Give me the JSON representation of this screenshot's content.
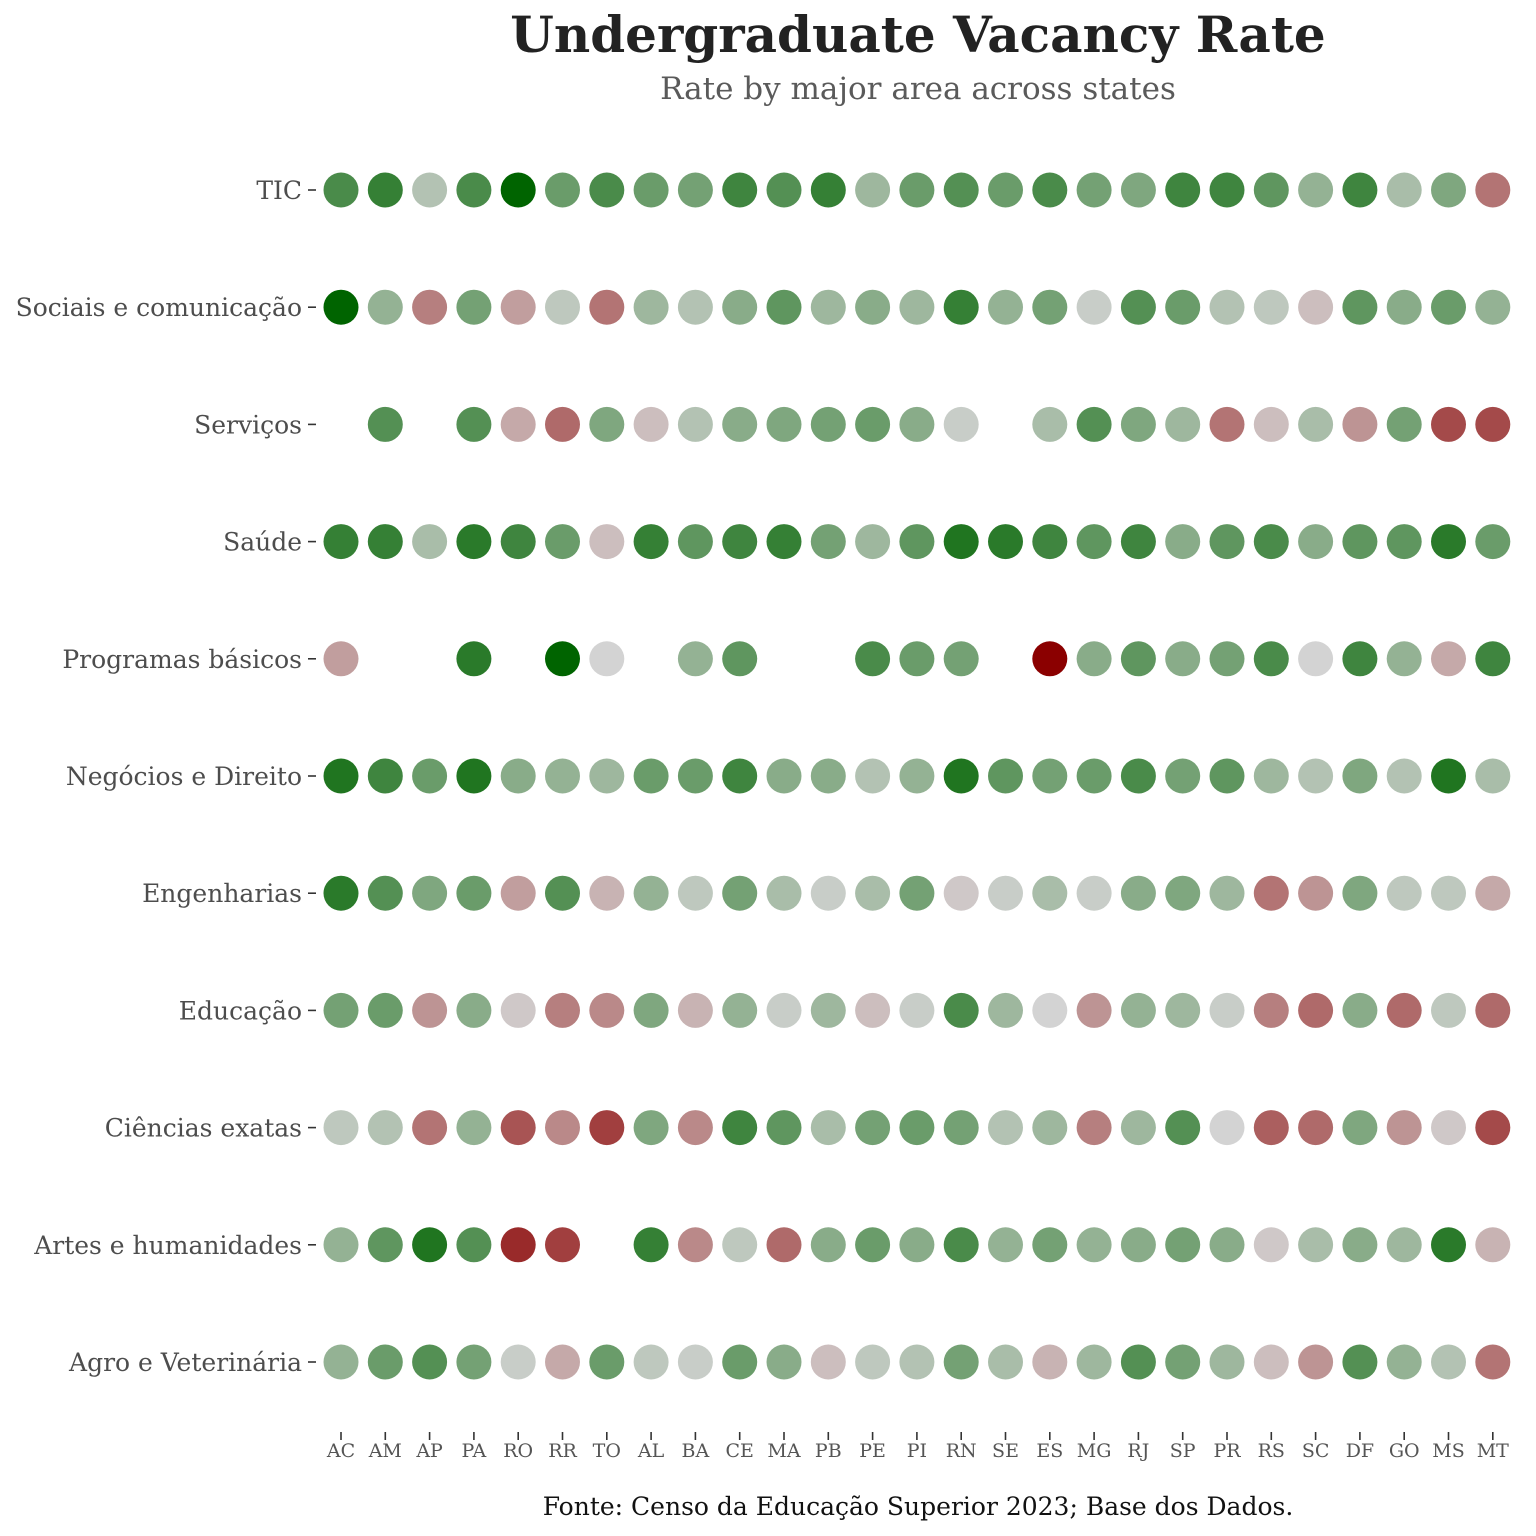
{
  "chart_data": {
    "type": "scatter",
    "title": "Undergraduate Vacancy Rate",
    "subtitle": "Rate by major area across states",
    "caption": "Fonte: Censo da Educação Superior 2023; Base dos Dados.",
    "xlabel": "",
    "ylabel": "",
    "grid": false,
    "legend": "none",
    "x": [
      "AC",
      "AM",
      "AP",
      "PA",
      "RO",
      "RR",
      "TO",
      "AL",
      "BA",
      "CE",
      "MA",
      "PB",
      "PE",
      "PI",
      "RN",
      "SE",
      "ES",
      "MG",
      "RJ",
      "SP",
      "PR",
      "RS",
      "SC",
      "DF",
      "GO",
      "MS",
      "MT"
    ],
    "y": [
      "TIC",
      "Sociais e comunicação",
      "Serviços",
      "Saúde",
      "Programas básicos",
      "Negócios e Direito",
      "Engenharias",
      "Educação",
      "Ciências exatas",
      "Artes e humanidades",
      "Agro e Veterinária"
    ],
    "value_note": "Diverging color scale: -1 = dark red, 0 = light gray, +1 = dark green; null = no dot",
    "colors": {
      "negative": "#8b0000",
      "neutral": "#d3d3d3",
      "positive": "#006400"
    },
    "values": [
      [
        0.65,
        0.75,
        0.15,
        0.65,
        1.0,
        0.5,
        0.65,
        0.5,
        0.45,
        0.7,
        0.6,
        0.75,
        0.25,
        0.5,
        0.6,
        0.5,
        0.65,
        0.45,
        0.4,
        0.7,
        0.7,
        0.55,
        0.3,
        0.7,
        0.2,
        0.4,
        -0.45
      ],
      [
        1.0,
        0.3,
        -0.4,
        0.45,
        -0.25,
        0.1,
        -0.45,
        0.25,
        0.15,
        0.35,
        0.55,
        0.25,
        0.35,
        0.25,
        0.75,
        0.3,
        0.45,
        0.05,
        0.6,
        0.5,
        0.15,
        0.1,
        -0.1,
        0.55,
        0.35,
        0.5,
        0.3
      ],
      [
        null,
        0.6,
        null,
        0.6,
        -0.2,
        -0.5,
        0.4,
        -0.1,
        0.15,
        0.35,
        0.4,
        0.45,
        0.5,
        0.35,
        0.05,
        null,
        0.2,
        0.6,
        0.4,
        0.25,
        -0.45,
        -0.1,
        0.2,
        -0.3,
        0.45,
        -0.65,
        -0.65
      ],
      [
        0.75,
        0.75,
        0.2,
        0.8,
        0.7,
        0.5,
        -0.1,
        0.75,
        0.55,
        0.7,
        0.75,
        0.45,
        0.25,
        0.55,
        0.85,
        0.8,
        0.7,
        0.55,
        0.7,
        0.35,
        0.55,
        0.65,
        0.35,
        0.55,
        0.55,
        0.8,
        0.5
      ],
      [
        -0.25,
        null,
        null,
        0.8,
        null,
        1.0,
        0.0,
        null,
        0.3,
        0.55,
        null,
        null,
        0.65,
        0.5,
        0.45,
        null,
        -1.0,
        0.35,
        0.55,
        0.35,
        0.45,
        0.65,
        0.0,
        0.7,
        0.3,
        -0.2,
        0.7
      ],
      [
        0.85,
        0.7,
        0.5,
        0.85,
        0.35,
        0.3,
        0.25,
        0.5,
        0.5,
        0.7,
        0.35,
        0.35,
        0.15,
        0.3,
        0.85,
        0.55,
        0.45,
        0.5,
        0.65,
        0.45,
        0.55,
        0.25,
        0.15,
        0.4,
        0.15,
        0.85,
        0.2
      ],
      [
        0.8,
        0.6,
        0.4,
        0.5,
        -0.25,
        0.6,
        -0.15,
        0.3,
        0.1,
        0.45,
        0.2,
        0.05,
        0.2,
        0.45,
        -0.05,
        0.05,
        0.2,
        0.05,
        0.35,
        0.4,
        0.25,
        -0.45,
        -0.3,
        0.4,
        0.1,
        0.1,
        -0.2
      ],
      [
        0.45,
        0.5,
        -0.3,
        0.35,
        -0.05,
        -0.4,
        -0.35,
        0.4,
        -0.15,
        0.3,
        0.05,
        0.25,
        -0.1,
        0.05,
        0.65,
        0.25,
        0.0,
        -0.3,
        0.3,
        0.25,
        0.05,
        -0.4,
        -0.5,
        0.35,
        -0.5,
        0.1,
        -0.5
      ],
      [
        0.1,
        0.15,
        -0.45,
        0.3,
        -0.6,
        -0.35,
        -0.7,
        0.4,
        -0.35,
        0.7,
        0.55,
        0.2,
        0.45,
        0.5,
        0.45,
        0.15,
        0.25,
        -0.4,
        0.25,
        0.6,
        0.0,
        -0.55,
        -0.5,
        0.4,
        -0.3,
        -0.05,
        -0.65
      ],
      [
        0.3,
        0.55,
        0.85,
        0.6,
        -0.8,
        -0.7,
        null,
        0.75,
        -0.35,
        0.1,
        -0.5,
        0.35,
        0.5,
        0.35,
        0.65,
        0.3,
        0.45,
        0.3,
        0.35,
        0.45,
        0.35,
        -0.05,
        0.2,
        0.35,
        0.25,
        0.8,
        -0.15
      ],
      [
        0.3,
        0.5,
        0.6,
        0.45,
        0.05,
        -0.2,
        0.5,
        0.1,
        0.05,
        0.5,
        0.35,
        -0.1,
        0.1,
        0.15,
        0.45,
        0.2,
        -0.15,
        0.25,
        0.6,
        0.45,
        0.25,
        -0.1,
        -0.3,
        0.6,
        0.3,
        0.15,
        -0.45
      ]
    ]
  }
}
